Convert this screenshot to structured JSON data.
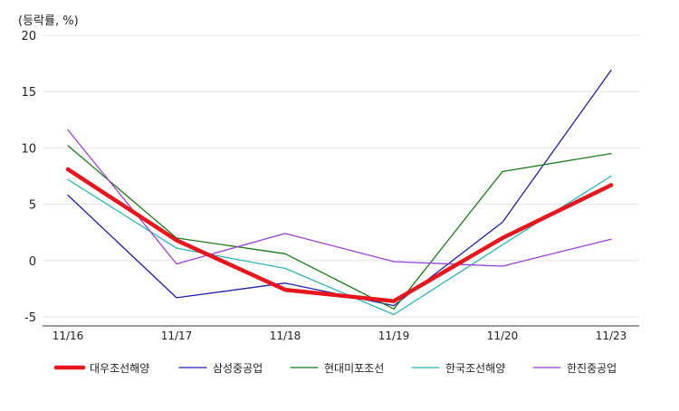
{
  "chart_data": {
    "type": "line",
    "unit_label": "(등락률, %)",
    "categories": [
      "11/16",
      "11/17",
      "11/18",
      "11/19",
      "11/20",
      "11/23"
    ],
    "ylim": [
      -5,
      20
    ],
    "yticks": [
      20,
      15,
      10,
      5,
      0,
      -5
    ],
    "grid": true,
    "legend_position": "bottom",
    "series": [
      {
        "name": "대우조선해양",
        "color": "#e8161c",
        "emphasis": true,
        "values": [
          8.1,
          1.8,
          -2.6,
          -3.6,
          2.0,
          6.7
        ]
      },
      {
        "name": "삼성중공업",
        "color": "#1f1fa8",
        "values": [
          5.8,
          -3.3,
          -2.0,
          -4.0,
          3.4,
          16.9
        ]
      },
      {
        "name": "현대미포조선",
        "color": "#1a7a1a",
        "values": [
          10.2,
          2.0,
          0.6,
          -4.3,
          7.9,
          9.5
        ]
      },
      {
        "name": "한국조선해양",
        "color": "#2fb3b3",
        "values": [
          7.2,
          1.1,
          -0.7,
          -4.8,
          1.4,
          7.5
        ]
      },
      {
        "name": "한진중공업",
        "color": "#9a3fd6",
        "values": [
          11.6,
          -0.3,
          2.4,
          -0.1,
          -0.5,
          1.9
        ]
      }
    ]
  }
}
